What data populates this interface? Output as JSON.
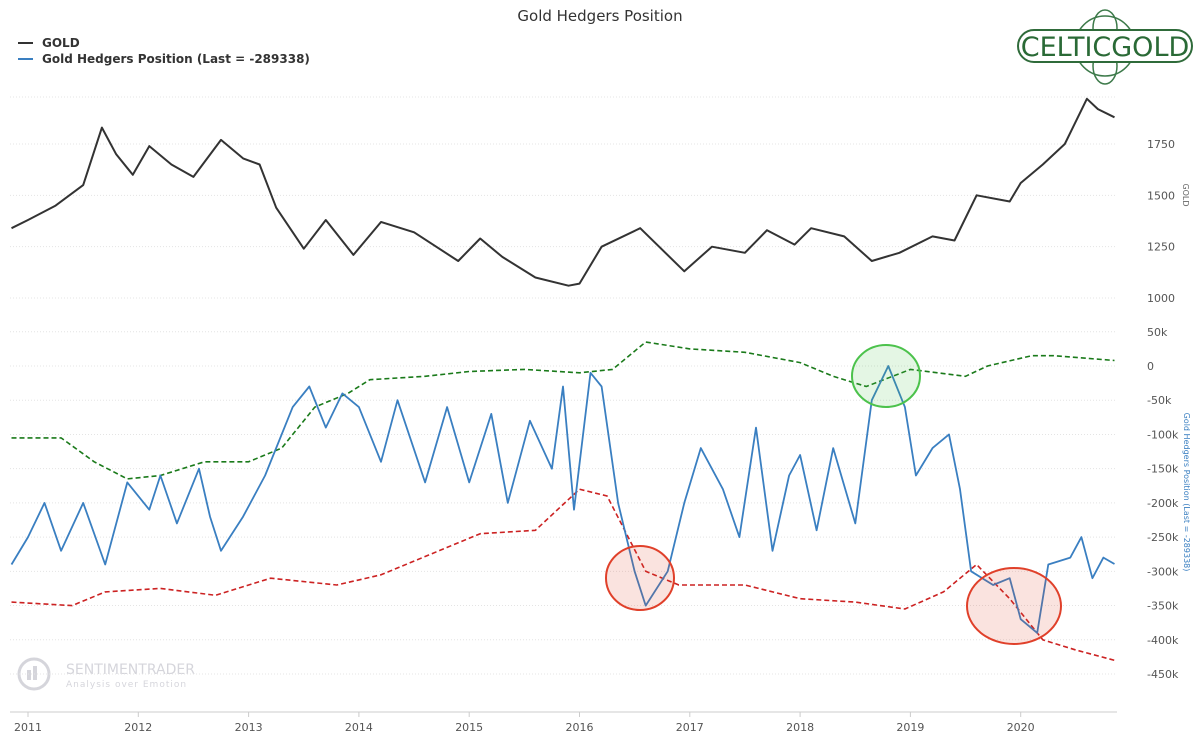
{
  "chart_data": {
    "type": "line",
    "title": "Gold Hedgers Position",
    "legend_position": "top-left",
    "grid": true,
    "x_ticks": [
      "2011",
      "2012",
      "2013",
      "2014",
      "2015",
      "2016",
      "2017",
      "2018",
      "2019",
      "2020"
    ],
    "panels": [
      {
        "ylabel": "GOLD",
        "y_ticks": [
          "1000",
          "1250",
          "1500",
          "1750"
        ],
        "ylim": [
          1000,
          2000
        ],
        "series": [
          {
            "name": "GOLD",
            "color": "#333333",
            "x": [
              2010.85,
              2011.0,
              2011.25,
              2011.5,
              2011.67,
              2011.8,
              2011.95,
              2012.1,
              2012.3,
              2012.5,
              2012.75,
              2012.95,
              2013.1,
              2013.25,
              2013.5,
              2013.7,
              2013.95,
              2014.2,
              2014.5,
              2014.9,
              2015.1,
              2015.3,
              2015.6,
              2015.9,
              2016.0,
              2016.2,
              2016.55,
              2016.95,
              2017.2,
              2017.5,
              2017.7,
              2017.95,
              2018.1,
              2018.4,
              2018.65,
              2018.9,
              2019.2,
              2019.4,
              2019.6,
              2019.9,
              2020.0,
              2020.2,
              2020.4,
              2020.6,
              2020.7,
              2020.85
            ],
            "y": [
              1340,
              1380,
              1450,
              1550,
              1830,
              1700,
              1600,
              1740,
              1650,
              1590,
              1770,
              1680,
              1650,
              1440,
              1240,
              1380,
              1210,
              1370,
              1320,
              1180,
              1290,
              1200,
              1100,
              1060,
              1070,
              1250,
              1340,
              1130,
              1250,
              1220,
              1330,
              1260,
              1340,
              1300,
              1180,
              1220,
              1300,
              1280,
              1500,
              1470,
              1560,
              1650,
              1750,
              1970,
              1920,
              1880
            ]
          }
        ]
      },
      {
        "ylabel": "Gold Hedgers Position (Last = -289338)",
        "y_ticks": [
          "50k",
          "0",
          "-50k",
          "-100k",
          "-150k",
          "-200k",
          "-250k",
          "-300k",
          "-350k",
          "-400k",
          "-450k"
        ],
        "ylim": [
          -450000,
          50000
        ],
        "series": [
          {
            "name": "Gold Hedgers Position (Last = -289338)",
            "color": "#3a7fc1",
            "style": "solid",
            "x": [
              2010.85,
              2011.0,
              2011.15,
              2011.3,
              2011.5,
              2011.7,
              2011.9,
              2012.1,
              2012.2,
              2012.35,
              2012.55,
              2012.65,
              2012.75,
              2012.95,
              2013.15,
              2013.4,
              2013.55,
              2013.7,
              2013.85,
              2014.0,
              2014.2,
              2014.35,
              2014.6,
              2014.8,
              2015.0,
              2015.2,
              2015.35,
              2015.55,
              2015.75,
              2015.85,
              2015.95,
              2016.1,
              2016.2,
              2016.35,
              2016.5,
              2016.6,
              2016.8,
              2016.95,
              2017.1,
              2017.3,
              2017.45,
              2017.6,
              2017.75,
              2017.9,
              2018.0,
              2018.15,
              2018.3,
              2018.5,
              2018.65,
              2018.8,
              2018.95,
              2019.05,
              2019.2,
              2019.35,
              2019.45,
              2019.55,
              2019.75,
              2019.9,
              2020.0,
              2020.15,
              2020.25,
              2020.45,
              2020.55,
              2020.65,
              2020.75,
              2020.85
            ],
            "y": [
              -290000,
              -250000,
              -200000,
              -270000,
              -200000,
              -290000,
              -170000,
              -210000,
              -160000,
              -230000,
              -150000,
              -220000,
              -270000,
              -220000,
              -160000,
              -60000,
              -30000,
              -90000,
              -40000,
              -60000,
              -140000,
              -50000,
              -170000,
              -60000,
              -170000,
              -70000,
              -200000,
              -80000,
              -150000,
              -30000,
              -210000,
              -10000,
              -30000,
              -200000,
              -300000,
              -350000,
              -300000,
              -200000,
              -120000,
              -180000,
              -250000,
              -90000,
              -270000,
              -160000,
              -130000,
              -240000,
              -120000,
              -230000,
              -50000,
              0,
              -60000,
              -160000,
              -120000,
              -100000,
              -180000,
              -300000,
              -320000,
              -310000,
              -370000,
              -390000,
              -290000,
              -280000,
              -250000,
              -310000,
              -280000,
              -289338
            ]
          },
          {
            "color": "#1a7a1a",
            "style": "dashed",
            "x": [
              2010.85,
              2011.3,
              2011.6,
              2011.9,
              2012.2,
              2012.6,
              2013.0,
              2013.3,
              2013.6,
              2013.9,
              2014.1,
              2014.6,
              2015.0,
              2015.5,
              2016.0,
              2016.3,
              2016.6,
              2017.0,
              2017.5,
              2018.0,
              2018.3,
              2018.6,
              2019.0,
              2019.5,
              2019.7,
              2020.1,
              2020.3,
              2020.85
            ],
            "y": [
              -105000,
              -105000,
              -140000,
              -165000,
              -160000,
              -140000,
              -140000,
              -120000,
              -60000,
              -40000,
              -20000,
              -15000,
              -8000,
              -5000,
              -10000,
              -5000,
              35000,
              25000,
              20000,
              5000,
              -15000,
              -30000,
              -5000,
              -15000,
              0,
              15000,
              15000,
              8000
            ]
          },
          {
            "color": "#cc2222",
            "style": "dashed",
            "x": [
              2010.85,
              2011.4,
              2011.7,
              2012.2,
              2012.7,
              2013.2,
              2013.8,
              2014.2,
              2014.8,
              2015.1,
              2015.6,
              2016.0,
              2016.25,
              2016.6,
              2016.9,
              2017.5,
              2018.0,
              2018.5,
              2018.95,
              2019.3,
              2019.6,
              2019.9,
              2020.2,
              2020.5,
              2020.85
            ],
            "y": [
              -345000,
              -350000,
              -330000,
              -325000,
              -335000,
              -310000,
              -320000,
              -305000,
              -265000,
              -245000,
              -240000,
              -180000,
              -190000,
              -300000,
              -320000,
              -320000,
              -340000,
              -345000,
              -355000,
              -330000,
              -290000,
              -340000,
              -400000,
              -415000,
              -430000
            ]
          }
        ],
        "annotations": [
          {
            "shape": "circle",
            "color": "#e0402a",
            "near": "2016.5 low"
          },
          {
            "shape": "circle",
            "color": "#4cc24c",
            "near": "2018.8 high"
          },
          {
            "shape": "circle",
            "color": "#e0402a",
            "near": "2020.0 low"
          }
        ]
      }
    ]
  },
  "logo": "CELTICGOLD",
  "watermark": {
    "name": "SENTIMENTRADER",
    "tagline": "Analysis over Emotion"
  }
}
